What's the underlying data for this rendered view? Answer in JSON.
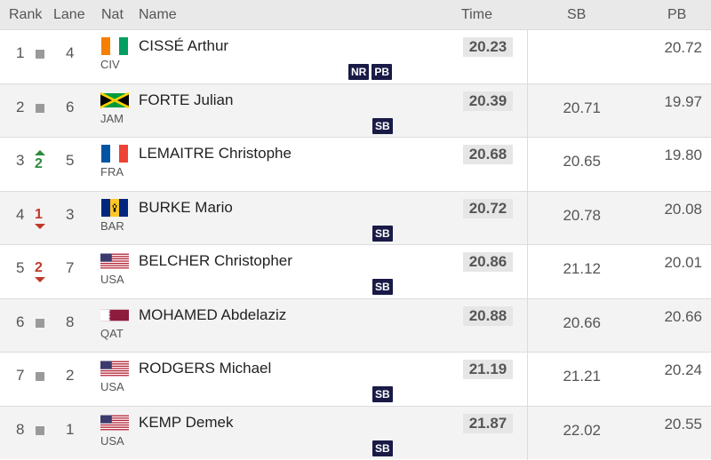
{
  "header": {
    "rank": "Rank",
    "lane": "Lane",
    "nat": "Nat",
    "name": "Name",
    "time": "Time",
    "sb": "SB",
    "pb": "PB"
  },
  "rows": [
    {
      "rank": "1",
      "change": "",
      "direction": "same",
      "lane": "4",
      "nat": "CIV",
      "flag_icon": "ivory-coast-flag-icon",
      "name": "CISSÉ Arthur",
      "badges": [
        "NR",
        "PB"
      ],
      "time": "20.23",
      "sb": "",
      "pb": "20.72"
    },
    {
      "rank": "2",
      "change": "",
      "direction": "same",
      "lane": "6",
      "nat": "JAM",
      "flag_icon": "jamaica-flag-icon",
      "name": "FORTE Julian",
      "badges": [
        "SB"
      ],
      "time": "20.39",
      "sb": "20.71",
      "pb": "19.97"
    },
    {
      "rank": "3",
      "change": "2",
      "direction": "up",
      "lane": "5",
      "nat": "FRA",
      "flag_icon": "france-flag-icon",
      "name": "LEMAITRE Christophe",
      "badges": [],
      "time": "20.68",
      "sb": "20.65",
      "pb": "19.80"
    },
    {
      "rank": "4",
      "change": "1",
      "direction": "down",
      "lane": "3",
      "nat": "BAR",
      "flag_icon": "barbados-flag-icon",
      "name": "BURKE Mario",
      "badges": [
        "SB"
      ],
      "time": "20.72",
      "sb": "20.78",
      "pb": "20.08"
    },
    {
      "rank": "5",
      "change": "2",
      "direction": "down",
      "lane": "7",
      "nat": "USA",
      "flag_icon": "usa-flag-icon",
      "name": "BELCHER Christopher",
      "badges": [
        "SB"
      ],
      "time": "20.86",
      "sb": "21.12",
      "pb": "20.01"
    },
    {
      "rank": "6",
      "change": "",
      "direction": "same",
      "lane": "8",
      "nat": "QAT",
      "flag_icon": "qatar-flag-icon",
      "name": "MOHAMED Abdelaziz",
      "badges": [],
      "time": "20.88",
      "sb": "20.66",
      "pb": "20.66"
    },
    {
      "rank": "7",
      "change": "",
      "direction": "same",
      "lane": "2",
      "nat": "USA",
      "flag_icon": "usa-flag-icon",
      "name": "RODGERS Michael",
      "badges": [
        "SB"
      ],
      "time": "21.19",
      "sb": "21.21",
      "pb": "20.24"
    },
    {
      "rank": "8",
      "change": "",
      "direction": "same",
      "lane": "1",
      "nat": "USA",
      "flag_icon": "usa-flag-icon",
      "name": "KEMP Demek",
      "badges": [
        "SB"
      ],
      "time": "21.87",
      "sb": "22.02",
      "pb": "20.55"
    }
  ],
  "colors": {
    "badge_bg": "#1a1a47",
    "rank_up": "#2e8b3e",
    "rank_down": "#c0392b"
  }
}
